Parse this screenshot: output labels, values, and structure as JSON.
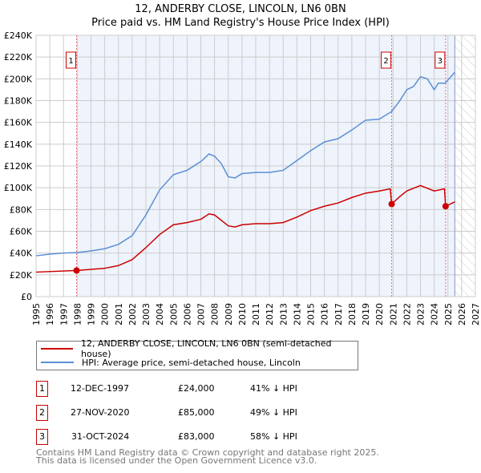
{
  "chart_data": {
    "type": "line",
    "title": "12, ANDERBY CLOSE, LINCOLN, LN6 0BN",
    "subtitle": "Price paid vs. HM Land Registry's House Price Index (HPI)",
    "xlim": [
      1995,
      2027
    ],
    "ylim": [
      0,
      240000
    ],
    "x_ticks": [
      "1995",
      "1996",
      "1997",
      "1998",
      "1999",
      "2000",
      "2001",
      "2002",
      "2003",
      "2004",
      "2005",
      "2006",
      "2007",
      "2008",
      "2009",
      "2010",
      "2011",
      "2012",
      "2013",
      "2014",
      "2015",
      "2016",
      "2017",
      "2018",
      "2019",
      "2020",
      "2021",
      "2022",
      "2023",
      "2024",
      "2025",
      "2026",
      "2027"
    ],
    "y_ticks": [
      "£0",
      "£20K",
      "£40K",
      "£60K",
      "£80K",
      "£100K",
      "£120K",
      "£140K",
      "£160K",
      "£180K",
      "£200K",
      "£220K",
      "£240K"
    ],
    "grid": true,
    "series": [
      {
        "name": "12, ANDERBY CLOSE, LINCOLN, LN6 0BN (semi-detached house)",
        "color": "#cc0000",
        "x": [
          1995,
          1997.95,
          1999,
          2000,
          2001,
          2002,
          2003,
          2004,
          2005,
          2006,
          2007,
          2007.6,
          2008,
          2009,
          2009.5,
          2010,
          2011,
          2012,
          2013,
          2014,
          2015,
          2016,
          2017,
          2018,
          2019,
          2020,
          2020.8,
          2020.9,
          2021.5,
          2022,
          2023,
          2024,
          2024.75,
          2024.83,
          2025.5
        ],
        "y": [
          22500,
          24000,
          25000,
          26000,
          28500,
          34000,
          45000,
          57000,
          66000,
          68000,
          71000,
          76000,
          75000,
          65000,
          64000,
          66000,
          67000,
          67000,
          68000,
          73000,
          79000,
          83000,
          86000,
          91000,
          95000,
          97000,
          99000,
          85000,
          92000,
          97000,
          102000,
          97000,
          99000,
          83000,
          87000
        ]
      },
      {
        "name": "HPI: Average price, semi-detached house, Lincoln",
        "color": "#5b8fd4",
        "x": [
          1995,
          1996,
          1997,
          1998,
          1999,
          2000,
          2001,
          2002,
          2003,
          2004,
          2005,
          2006,
          2007,
          2007.6,
          2008,
          2008.5,
          2009,
          2009.5,
          2010,
          2011,
          2012,
          2013,
          2014,
          2015,
          2016,
          2017,
          2018,
          2019,
          2020,
          2020.9,
          2021.5,
          2022,
          2022.5,
          2023,
          2023.5,
          2024,
          2024.3,
          2024.8,
          2025.5
        ],
        "y": [
          37500,
          39000,
          40000,
          40500,
          42000,
          44000,
          48000,
          56000,
          75000,
          98000,
          112000,
          116000,
          124000,
          131000,
          129000,
          122000,
          110000,
          109000,
          113000,
          114000,
          114000,
          116000,
          125000,
          134000,
          142000,
          145000,
          153000,
          162000,
          163000,
          170000,
          180000,
          190000,
          193000,
          202000,
          200000,
          190000,
          196000,
          196000,
          206000
        ]
      }
    ],
    "sales": [
      {
        "label": "1",
        "date": "12-DEC-1997",
        "x": 1997.95,
        "price": "£24,000",
        "value": 24000,
        "hpi": "41% ↓ HPI"
      },
      {
        "label": "2",
        "date": "27-NOV-2020",
        "x": 2020.9,
        "price": "£85,000",
        "value": 85000,
        "hpi": "49% ↓ HPI"
      },
      {
        "label": "3",
        "date": "31-OCT-2024",
        "x": 2024.83,
        "price": "£83,000",
        "value": 83000,
        "hpi": "58% ↓ HPI"
      }
    ],
    "shaded_range": [
      1997.95,
      2025.5
    ],
    "forecast_from": 2025.5
  },
  "footer": [
    "Contains HM Land Registry data © Crown copyright and database right 2025.",
    "This data is licensed under the Open Government Licence v3.0."
  ]
}
